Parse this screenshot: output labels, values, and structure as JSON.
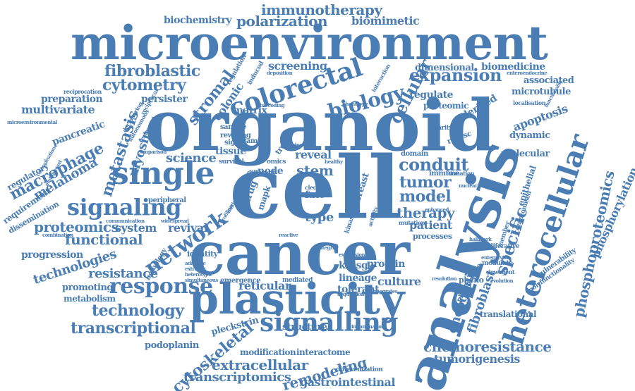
{
  "colors": {
    "word": "#4a7db3",
    "background": "#ffffff"
  },
  "words": [
    "microenvironment",
    "organoid",
    "cell",
    "cancer",
    "analysis",
    "plasticity",
    "colorectal",
    "single",
    "heterocellular",
    "signaling",
    "signalling",
    "response",
    "network",
    "immunotherapy",
    "polarization",
    "biomimetic",
    "biochemistry",
    "fibroblastic",
    "cytometry",
    "biology",
    "expansion",
    "cellular",
    "screening",
    "stromal",
    "colonic",
    "metastasis",
    "myosin",
    "melanoma",
    "macrophage",
    "phosphoproteomics",
    "phosphorylation",
    "specific",
    "conduit",
    "tumor",
    "model",
    "therapy",
    "patient",
    "apoptosis",
    "dimensional",
    "biomedicine",
    "associated",
    "microtubule",
    "regulate",
    "proteomic",
    "derived",
    "dynamic",
    "molecular",
    "epithelial",
    "functional",
    "technologies",
    "technology",
    "transcriptional",
    "proteomics",
    "system",
    "revival",
    "resistance",
    "progression",
    "metabolism",
    "promoting",
    "reticular",
    "lineage",
    "tolerant",
    "culture",
    "protein",
    "krasg",
    "stem",
    "reveal",
    "node",
    "tissue",
    "science",
    "fibroblast",
    "oncogenic",
    "chemoresistance",
    "tumorigenesis",
    "translational",
    "gastrointestinal",
    "remodeling",
    "extracellular",
    "transcriptomics",
    "cytoskeletal",
    "podoplanin",
    "pleckstrin",
    "structure",
    "modification",
    "interactome",
    "differentiation",
    "persister",
    "multivariate",
    "preparation",
    "pancreatic",
    "regulatory",
    "requirement",
    "dissemination",
    "peripheral",
    "matrix",
    "identity",
    "homology",
    "emergence",
    "mediated",
    "breast",
    "type",
    "fate",
    "drug",
    "mapk",
    "trellis",
    "family",
    "sample",
    "rewiring",
    "signal",
    "survival",
    "different",
    "omics",
    "vulnerability",
    "polyfunctionality",
    "proliferative",
    "compromised",
    "member",
    "enteroendocrine",
    "localisation",
    "functionality",
    "pheno",
    "phenoscape",
    "regulation",
    "induced",
    "deposition",
    "barcoding",
    "phenotype",
    "interaction",
    "reciprocation",
    "reciprocal",
    "microenvironmental",
    "deciphering",
    "autonomous",
    "colocalisation",
    "multiplexed",
    "comparison",
    "combination",
    "reactive",
    "processes",
    "mutation",
    "enhanced",
    "immune",
    "formation",
    "domain",
    "revesc",
    "polarity",
    "clec",
    "kinase",
    "activity",
    "integrity",
    "healthy",
    "modulate",
    "emergent",
    "nuclear",
    "hallmark",
    "communication",
    "widespread",
    "method",
    "profiling",
    "adaptive",
    "extrinsic",
    "simultaneous",
    "heterotypic",
    "inflammation",
    "expression",
    "acquisition",
    "integrates",
    "resolution",
    "enterocytes",
    "reciprocal",
    "evolution",
    "intrinsic"
  ]
}
